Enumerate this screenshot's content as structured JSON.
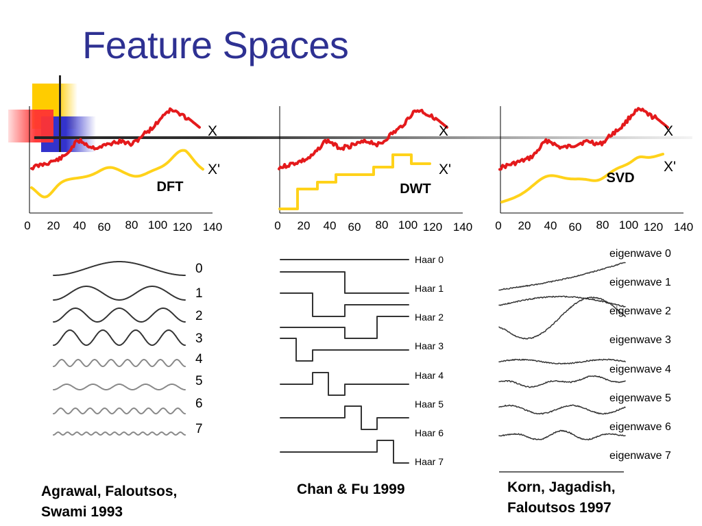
{
  "title": "Feature Spaces",
  "series_labels": {
    "original": "X",
    "approx": "X'"
  },
  "methods": [
    "DFT",
    "DWT",
    "SVD"
  ],
  "x_ticks": [
    "0",
    "20",
    "40",
    "60",
    "80",
    "100",
    "120",
    "140"
  ],
  "dft_basis_labels": [
    "0",
    "1",
    "2",
    "3",
    "4",
    "5",
    "6",
    "7"
  ],
  "haar_labels": [
    "Haar 0",
    "Haar 1",
    "Haar 2",
    "Haar 3",
    "Haar 4",
    "Haar 5",
    "Haar 6",
    "Haar 7"
  ],
  "eigen_labels": [
    "eigenwave 0",
    "eigenwave 1",
    "eigenwave 2",
    "eigenwave 3",
    "eigenwave 4",
    "eigenwave 5",
    "eigenwave 6",
    "eigenwave 7"
  ],
  "citations": {
    "dft": [
      "Agrawal, Faloutsos,",
      "Swami 1993"
    ],
    "dwt": [
      "Chan & Fu 1999"
    ],
    "svd": [
      "Korn, Jagadish,",
      "Faloutsos 1997"
    ]
  },
  "colors": {
    "title": "#2e3192",
    "original": "#e41a1c",
    "approx": "#ffd21a",
    "deco_yellow": "#ffcc00",
    "deco_blue": "#3333cc",
    "deco_red": "#ff3333"
  }
}
